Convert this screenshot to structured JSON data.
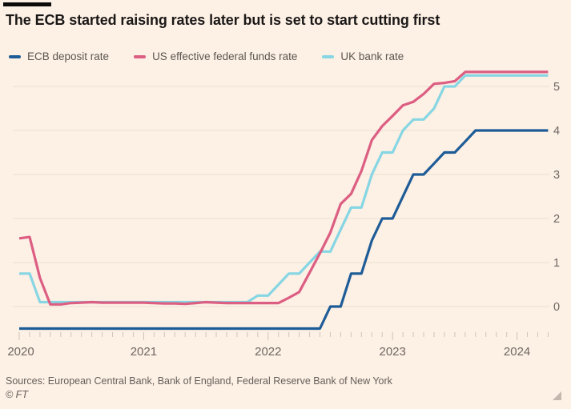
{
  "title": "The ECB started raising rates later but is set to start cutting first",
  "legend": {
    "items": [
      {
        "label": "ECB deposit rate",
        "color": "#1e5c97"
      },
      {
        "label": "US effective federal funds rate",
        "color": "#dc5e82"
      },
      {
        "label": "UK bank rate",
        "color": "#86d6e3"
      }
    ]
  },
  "chart_data": {
    "type": "line",
    "title": "The ECB started raising rates later but is set to start cutting first",
    "frequency": "monthly",
    "x_start": "2020-01",
    "x_end": "2024-04",
    "x_tick_labels": [
      "2020",
      "2021",
      "2022",
      "2023",
      "2024"
    ],
    "y_tick_labels": [
      0,
      1,
      2,
      3,
      4,
      5
    ],
    "ylim": [
      -0.5,
      5.45
    ],
    "grid": "horizontal",
    "legend_position": "top-left",
    "series": [
      {
        "name": "ECB deposit rate",
        "color": "#1e5c97",
        "values": [
          -0.5,
          -0.5,
          -0.5,
          -0.5,
          -0.5,
          -0.5,
          -0.5,
          -0.5,
          -0.5,
          -0.5,
          -0.5,
          -0.5,
          -0.5,
          -0.5,
          -0.5,
          -0.5,
          -0.5,
          -0.5,
          -0.5,
          -0.5,
          -0.5,
          -0.5,
          -0.5,
          -0.5,
          -0.5,
          -0.5,
          -0.5,
          -0.5,
          -0.5,
          -0.5,
          0,
          0,
          0.75,
          0.75,
          1.5,
          2,
          2,
          2.5,
          3,
          3,
          3.25,
          3.5,
          3.5,
          3.75,
          4,
          4,
          4,
          4,
          4,
          4,
          4,
          4
        ]
      },
      {
        "name": "US effective federal funds rate",
        "color": "#dc5e82",
        "values": [
          1.55,
          1.58,
          0.65,
          0.05,
          0.05,
          0.08,
          0.09,
          0.1,
          0.09,
          0.09,
          0.09,
          0.09,
          0.09,
          0.08,
          0.07,
          0.07,
          0.06,
          0.08,
          0.1,
          0.09,
          0.08,
          0.08,
          0.08,
          0.08,
          0.08,
          0.08,
          0.2,
          0.33,
          0.77,
          1.21,
          1.68,
          2.33,
          2.56,
          3.08,
          3.78,
          4.1,
          4.33,
          4.57,
          4.65,
          4.83,
          5.06,
          5.08,
          5.12,
          5.33,
          5.33,
          5.33,
          5.33,
          5.33,
          5.33,
          5.33,
          5.33,
          5.33
        ]
      },
      {
        "name": "UK bank rate",
        "color": "#86d6e3",
        "values": [
          0.75,
          0.75,
          0.1,
          0.1,
          0.1,
          0.1,
          0.1,
          0.1,
          0.1,
          0.1,
          0.1,
          0.1,
          0.1,
          0.1,
          0.1,
          0.1,
          0.1,
          0.1,
          0.1,
          0.1,
          0.1,
          0.1,
          0.1,
          0.25,
          0.25,
          0.5,
          0.75,
          0.75,
          1,
          1.25,
          1.25,
          1.75,
          2.25,
          2.25,
          3,
          3.5,
          3.5,
          4,
          4.25,
          4.25,
          4.5,
          5,
          5,
          5.25,
          5.25,
          5.25,
          5.25,
          5.25,
          5.25,
          5.25,
          5.25,
          5.25
        ]
      }
    ]
  },
  "footer": {
    "sources": "Sources: European Central Bank, Bank of England, Federal Reserve Bank of New York",
    "credit": "© FT"
  }
}
